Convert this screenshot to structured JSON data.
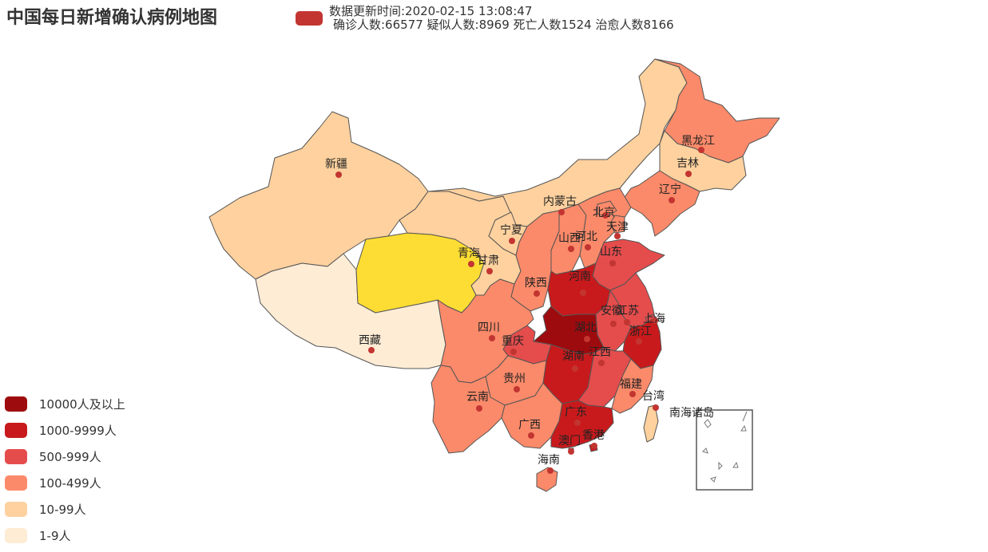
{
  "header": {
    "title": "中国每日新增确认病例地图",
    "update_line": "数据更新时间:2020-02-15 13:08:47",
    "stats_line": "确诊人数:66577 疑似人数:8969 死亡人数1524 治愈人数8166",
    "swatch_color": "#c23531"
  },
  "legend": {
    "items": [
      {
        "label": "10000人及以上",
        "color": "#9e0b0e"
      },
      {
        "label": "1000-9999人",
        "color": "#c81a1c"
      },
      {
        "label": "500-999人",
        "color": "#e54c4c"
      },
      {
        "label": "100-499人",
        "color": "#fb8a6a"
      },
      {
        "label": "10-99人",
        "color": "#fed19e"
      },
      {
        "label": "1-9人",
        "color": "#feecd5"
      }
    ]
  },
  "map": {
    "provinces": {
      "xinjiang": "新疆",
      "xizang": "西藏",
      "qinghai": "青海",
      "gansu": "甘肃",
      "neimenggu": "内蒙古",
      "ningxia": "宁夏",
      "shaanxi": "陕西",
      "shanxi": "山西",
      "hebei": "河北",
      "beijing": "北京",
      "tianjin": "天津",
      "shandong": "山东",
      "henan": "河南",
      "hubei": "湖北",
      "hunan": "湖南",
      "jiangxi": "江西",
      "anhui": "安徽",
      "jiangsu": "江苏",
      "shanghai": "上海",
      "zhejiang": "浙江",
      "fujian": "福建",
      "taiwan": "台湾",
      "guangdong": "广东",
      "guangxi": "广西",
      "hainan": "海南",
      "hongkong": "香港",
      "macau": "澳门",
      "yunnan": "云南",
      "guizhou": "贵州",
      "sichuan": "四川",
      "chongqing": "重庆",
      "liaoning": "辽宁",
      "jilin": "吉林",
      "heilongjiang": "黑龙江",
      "nanhai": "南海诸岛"
    },
    "marker_color": "#c23531",
    "border_color": "#555555"
  }
}
